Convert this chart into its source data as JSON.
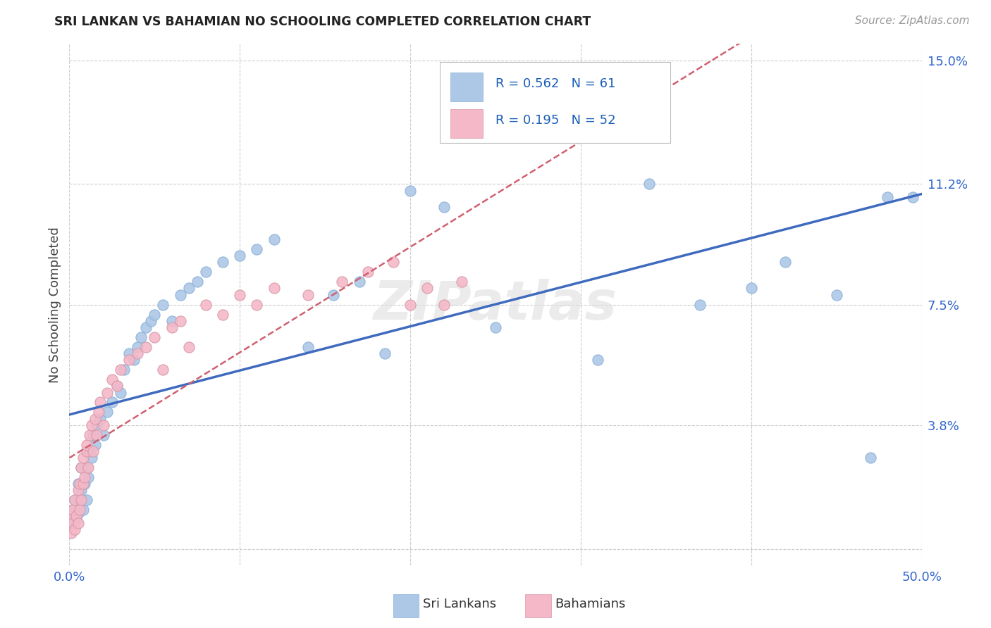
{
  "title": "SRI LANKAN VS BAHAMIAN NO SCHOOLING COMPLETED CORRELATION CHART",
  "source": "Source: ZipAtlas.com",
  "ylabel": "No Schooling Completed",
  "xlim": [
    0.0,
    0.5
  ],
  "ylim": [
    -0.005,
    0.155
  ],
  "ytick_positions": [
    0.0,
    0.038,
    0.075,
    0.112,
    0.15
  ],
  "ytick_labels": [
    "",
    "3.8%",
    "7.5%",
    "11.2%",
    "15.0%"
  ],
  "sri_lankan_color": "#adc8e6",
  "bahamian_color": "#f4b8c8",
  "sri_lankan_R": 0.562,
  "sri_lankan_N": 61,
  "bahamian_R": 0.195,
  "bahamian_N": 52,
  "legend_color": "#1a5eb8",
  "trendline_sri_color": "#3f6bbf",
  "trendline_bah_color": "#d06070",
  "watermark": "ZIPatlas",
  "sri_x": [
    0.001,
    0.002,
    0.003,
    0.003,
    0.004,
    0.005,
    0.005,
    0.006,
    0.007,
    0.007,
    0.008,
    0.009,
    0.01,
    0.01,
    0.011,
    0.012,
    0.013,
    0.014,
    0.015,
    0.016,
    0.018,
    0.02,
    0.022,
    0.025,
    0.028,
    0.03,
    0.032,
    0.035,
    0.038,
    0.04,
    0.042,
    0.045,
    0.048,
    0.05,
    0.055,
    0.06,
    0.065,
    0.07,
    0.075,
    0.08,
    0.09,
    0.1,
    0.11,
    0.12,
    0.14,
    0.155,
    0.17,
    0.185,
    0.2,
    0.22,
    0.25,
    0.28,
    0.31,
    0.34,
    0.37,
    0.4,
    0.42,
    0.45,
    0.47,
    0.48,
    0.495
  ],
  "sri_y": [
    0.008,
    0.012,
    0.01,
    0.015,
    0.009,
    0.011,
    0.02,
    0.015,
    0.018,
    0.025,
    0.012,
    0.02,
    0.015,
    0.025,
    0.022,
    0.03,
    0.028,
    0.035,
    0.032,
    0.038,
    0.04,
    0.035,
    0.042,
    0.045,
    0.05,
    0.048,
    0.055,
    0.06,
    0.058,
    0.062,
    0.065,
    0.068,
    0.07,
    0.072,
    0.075,
    0.07,
    0.078,
    0.08,
    0.082,
    0.085,
    0.088,
    0.09,
    0.092,
    0.095,
    0.062,
    0.078,
    0.082,
    0.06,
    0.11,
    0.105,
    0.068,
    0.13,
    0.058,
    0.112,
    0.075,
    0.08,
    0.088,
    0.078,
    0.028,
    0.108,
    0.108
  ],
  "bah_x": [
    0.001,
    0.001,
    0.002,
    0.002,
    0.003,
    0.003,
    0.004,
    0.005,
    0.005,
    0.006,
    0.006,
    0.007,
    0.007,
    0.008,
    0.008,
    0.009,
    0.01,
    0.01,
    0.011,
    0.012,
    0.013,
    0.014,
    0.015,
    0.016,
    0.017,
    0.018,
    0.02,
    0.022,
    0.025,
    0.028,
    0.03,
    0.035,
    0.04,
    0.045,
    0.05,
    0.055,
    0.06,
    0.065,
    0.07,
    0.08,
    0.09,
    0.1,
    0.11,
    0.12,
    0.14,
    0.16,
    0.175,
    0.19,
    0.2,
    0.21,
    0.22,
    0.23
  ],
  "bah_y": [
    0.005,
    0.01,
    0.008,
    0.012,
    0.006,
    0.015,
    0.01,
    0.008,
    0.018,
    0.012,
    0.02,
    0.015,
    0.025,
    0.02,
    0.028,
    0.022,
    0.03,
    0.032,
    0.025,
    0.035,
    0.038,
    0.03,
    0.04,
    0.035,
    0.042,
    0.045,
    0.038,
    0.048,
    0.052,
    0.05,
    0.055,
    0.058,
    0.06,
    0.062,
    0.065,
    0.055,
    0.068,
    0.07,
    0.062,
    0.075,
    0.072,
    0.078,
    0.075,
    0.08,
    0.078,
    0.082,
    0.085,
    0.088,
    0.075,
    0.08,
    0.075,
    0.082
  ]
}
